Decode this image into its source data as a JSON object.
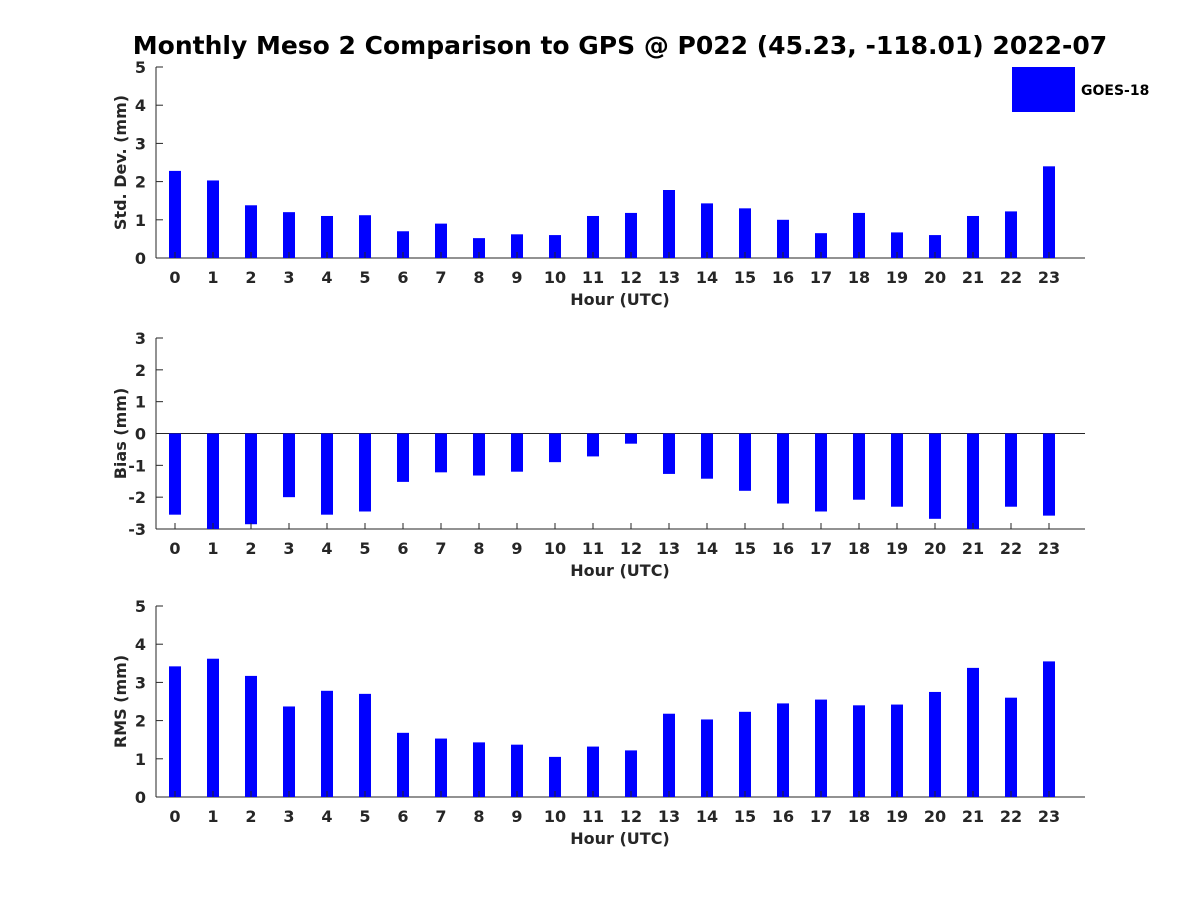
{
  "title": "Monthly Meso 2 Comparison to GPS @ P022 (45.23, -118.01) 2022-07",
  "legend": {
    "label": "GOES-18",
    "color": "#0000ff"
  },
  "chart_data": [
    {
      "type": "bar",
      "title": "Monthly Meso 2 Comparison to GPS @ P022 (45.23, -118.01) 2022-07",
      "xlabel": "Hour (UTC)",
      "ylabel": "Std. Dev. (mm)",
      "ylim": [
        0,
        5
      ],
      "yticks": [
        "0",
        "1",
        "2",
        "3",
        "4",
        "5"
      ],
      "categories": [
        "0",
        "1",
        "2",
        "3",
        "4",
        "5",
        "6",
        "7",
        "8",
        "9",
        "10",
        "11",
        "12",
        "13",
        "14",
        "15",
        "16",
        "17",
        "18",
        "19",
        "20",
        "21",
        "22",
        "23"
      ],
      "series": [
        {
          "name": "GOES-18",
          "values": [
            2.28,
            2.03,
            1.38,
            1.2,
            1.1,
            1.12,
            0.7,
            0.9,
            0.52,
            0.62,
            0.6,
            1.1,
            1.18,
            1.78,
            1.43,
            1.3,
            1.0,
            0.65,
            1.18,
            0.67,
            0.6,
            1.1,
            1.22,
            2.4
          ]
        }
      ],
      "legend_position": "top-right"
    },
    {
      "type": "bar",
      "xlabel": "Hour (UTC)",
      "ylabel": "Bias (mm)",
      "ylim": [
        -3,
        3
      ],
      "yticks": [
        "-3",
        "-2",
        "-1",
        "0",
        "1",
        "2",
        "3"
      ],
      "categories": [
        "0",
        "1",
        "2",
        "3",
        "4",
        "5",
        "6",
        "7",
        "8",
        "9",
        "10",
        "11",
        "12",
        "13",
        "14",
        "15",
        "16",
        "17",
        "18",
        "19",
        "20",
        "21",
        "22",
        "23"
      ],
      "series": [
        {
          "name": "GOES-18",
          "values": [
            -2.55,
            -3.0,
            -2.85,
            -2.0,
            -2.55,
            -2.45,
            -1.52,
            -1.22,
            -1.32,
            -1.2,
            -0.9,
            -0.72,
            -0.32,
            -1.27,
            -1.42,
            -1.8,
            -2.2,
            -2.45,
            -2.08,
            -2.3,
            -2.68,
            -3.0,
            -2.3,
            -2.58
          ]
        }
      ]
    },
    {
      "type": "bar",
      "xlabel": "Hour (UTC)",
      "ylabel": "RMS (mm)",
      "ylim": [
        0,
        5
      ],
      "yticks": [
        "0",
        "1",
        "2",
        "3",
        "4",
        "5"
      ],
      "categories": [
        "0",
        "1",
        "2",
        "3",
        "4",
        "5",
        "6",
        "7",
        "8",
        "9",
        "10",
        "11",
        "12",
        "13",
        "14",
        "15",
        "16",
        "17",
        "18",
        "19",
        "20",
        "21",
        "22",
        "23"
      ],
      "series": [
        {
          "name": "GOES-18",
          "values": [
            3.42,
            3.62,
            3.17,
            2.37,
            2.78,
            2.7,
            1.68,
            1.53,
            1.43,
            1.37,
            1.05,
            1.32,
            1.22,
            2.18,
            2.03,
            2.23,
            2.45,
            2.55,
            2.4,
            2.42,
            2.75,
            3.38,
            2.6,
            3.55
          ]
        }
      ]
    }
  ]
}
